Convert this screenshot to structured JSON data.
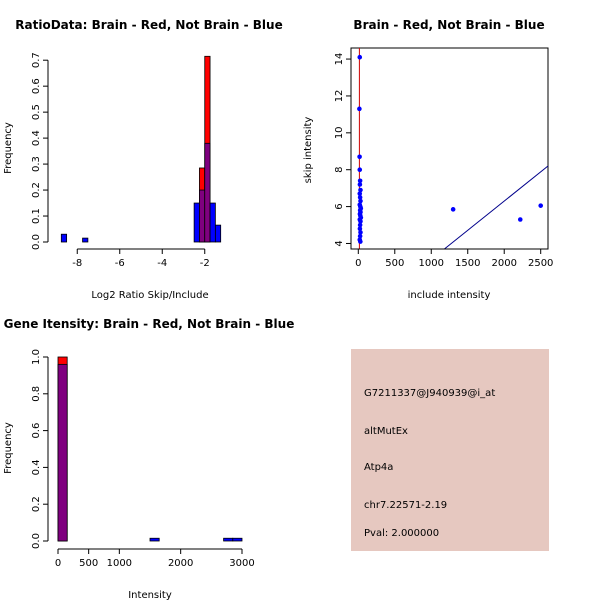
{
  "colors": {
    "brain": "#ff0000",
    "not_brain": "#0000ff",
    "overlap": "#7f007f",
    "axis": "#000000",
    "panel_bg": "#e6c8c0",
    "pval_text": "#8b0000",
    "skip_line": "#cc0000",
    "fit_line": "#00008b"
  },
  "chart_data": [
    {
      "type": "bar",
      "title": "RatioData: Brain - Red, Not Brain - Blue",
      "xlabel": "Log2 Ratio Skip/Include",
      "ylabel": "Frequency",
      "xlim": [
        -9,
        -0.2
      ],
      "ylim": [
        0,
        0.72
      ],
      "xticks": [
        -8,
        -6,
        -4,
        -2
      ],
      "xtick_labels": [
        "-8",
        "-6",
        "-4",
        "-2"
      ],
      "yticks": [
        0,
        0.1,
        0.2,
        0.3,
        0.4,
        0.5,
        0.6,
        0.7
      ],
      "ytick_labels": [
        "0.0",
        "0.1",
        "0.2",
        "0.3",
        "0.4",
        "0.5",
        "0.6",
        "0.7"
      ],
      "bin_width": 0.25,
      "series": [
        {
          "name": "Not Brain",
          "color": "#0000ff",
          "bins": [
            [
              -8.75,
              0.03
            ],
            [
              -7.75,
              0.015
            ],
            [
              -2.5,
              0.15
            ],
            [
              -2.25,
              0.2
            ],
            [
              -2.0,
              0.38
            ],
            [
              -1.75,
              0.15
            ],
            [
              -1.5,
              0.065
            ]
          ]
        },
        {
          "name": "Brain",
          "color": "#ff0000",
          "bins": [
            [
              -2.25,
              0.285
            ],
            [
              -2.0,
              0.715
            ]
          ]
        }
      ]
    },
    {
      "type": "scatter",
      "title": "Brain - Red, Not Brain - Blue",
      "xlabel": "include intensity",
      "ylabel": "skip intensity",
      "xlim": [
        -100,
        2600
      ],
      "ylim": [
        3.7,
        14.6
      ],
      "xticks": [
        0,
        500,
        1000,
        1500,
        2000,
        2500
      ],
      "xtick_labels": [
        "0",
        "500",
        "1000",
        "1500",
        "2000",
        "2500"
      ],
      "yticks": [
        4,
        6,
        8,
        10,
        12,
        14
      ],
      "ytick_labels": [
        "4",
        "6",
        "8",
        "10",
        "12",
        "14"
      ],
      "points": [
        [
          20,
          14.1
        ],
        [
          15,
          11.3
        ],
        [
          18,
          8.7
        ],
        [
          20,
          8.0
        ],
        [
          25,
          7.4
        ],
        [
          22,
          7.2
        ],
        [
          30,
          6.9
        ],
        [
          20,
          6.7
        ],
        [
          25,
          6.5
        ],
        [
          30,
          6.3
        ],
        [
          20,
          6.1
        ],
        [
          28,
          6.0
        ],
        [
          35,
          5.9
        ],
        [
          25,
          5.8
        ],
        [
          30,
          5.7
        ],
        [
          22,
          5.6
        ],
        [
          28,
          5.5
        ],
        [
          35,
          5.4
        ],
        [
          20,
          5.3
        ],
        [
          30,
          5.2
        ],
        [
          25,
          5.0
        ],
        [
          22,
          4.8
        ],
        [
          30,
          4.6
        ],
        [
          25,
          4.4
        ],
        [
          20,
          4.2
        ],
        [
          28,
          4.1
        ],
        [
          1300,
          5.85
        ],
        [
          2220,
          5.3
        ],
        [
          2500,
          6.05
        ]
      ],
      "vertical_line_x": 15,
      "regression_line": [
        [
          1180,
          3.7
        ],
        [
          2600,
          8.2
        ]
      ]
    },
    {
      "type": "bar",
      "title": "Gene Itensity: Brain - Red, Not Brain - Blue",
      "xlabel": "Intensity",
      "ylabel": "Frequency",
      "xlim": [
        -100,
        3050
      ],
      "ylim": [
        0,
        1.0
      ],
      "xticks": [
        0,
        500,
        1000,
        2000,
        3000
      ],
      "xtick_labels": [
        "0",
        "500",
        "1000",
        "2000",
        "3000"
      ],
      "yticks": [
        0,
        0.2,
        0.4,
        0.6,
        0.8,
        1.0
      ],
      "ytick_labels": [
        "0.0",
        "0.2",
        "0.4",
        "0.6",
        "0.8",
        "1.0"
      ],
      "bin_width": 150,
      "series": [
        {
          "name": "Not Brain",
          "color": "#0000ff",
          "bins": [
            [
              0,
              0.96
            ],
            [
              1500,
              0.015
            ],
            [
              2700,
              0.015
            ],
            [
              2850,
              0.015
            ]
          ]
        },
        {
          "name": "Brain",
          "color": "#ff0000",
          "bins": [
            [
              0,
              1.0
            ]
          ]
        }
      ]
    }
  ],
  "info_panel": {
    "probe_id": "G7211337@J940939@i_at",
    "event_type": "altMutEx",
    "gene": "Atp4a",
    "location": "chr7.22571-2.19",
    "pval": "Pval: 2.000000"
  }
}
